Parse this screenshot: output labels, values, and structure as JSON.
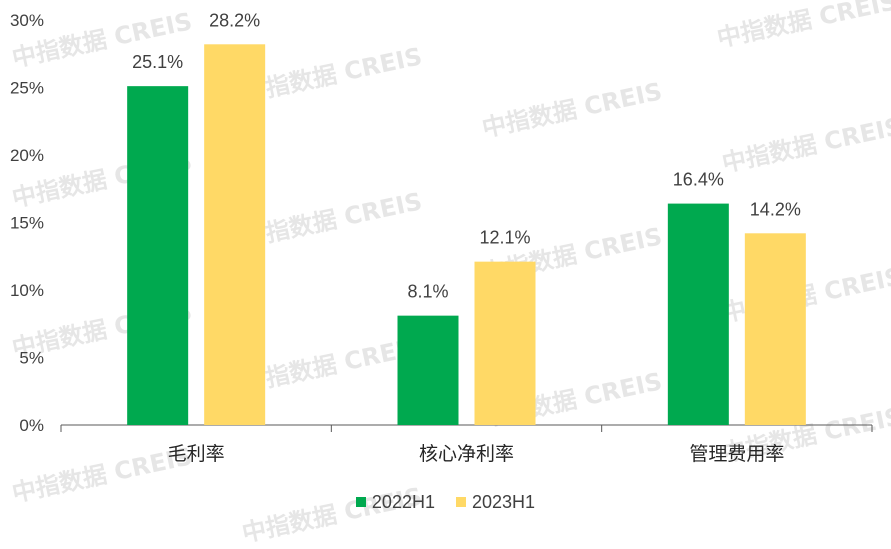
{
  "watermark": "中指数据 CREIS",
  "colors": {
    "series_2022": "#00A94F",
    "series_2023": "#FFD966",
    "axis": "#595959"
  },
  "chart_data": {
    "type": "bar",
    "categories": [
      "毛利率",
      "核心净利率",
      "管理费用率"
    ],
    "series": [
      {
        "name": "2022H1",
        "values": [
          25.1,
          8.1,
          16.4
        ]
      },
      {
        "name": "2023H1",
        "values": [
          28.2,
          12.1,
          14.2
        ]
      }
    ],
    "data_labels": [
      [
        "25.1%",
        "8.1%",
        "16.4%"
      ],
      [
        "28.2%",
        "12.1%",
        "14.2%"
      ]
    ],
    "y_ticks": [
      "0%",
      "5%",
      "10%",
      "15%",
      "20%",
      "25%",
      "30%"
    ],
    "ylim": [
      0,
      30
    ],
    "legend_position": "bottom",
    "grid": false
  }
}
